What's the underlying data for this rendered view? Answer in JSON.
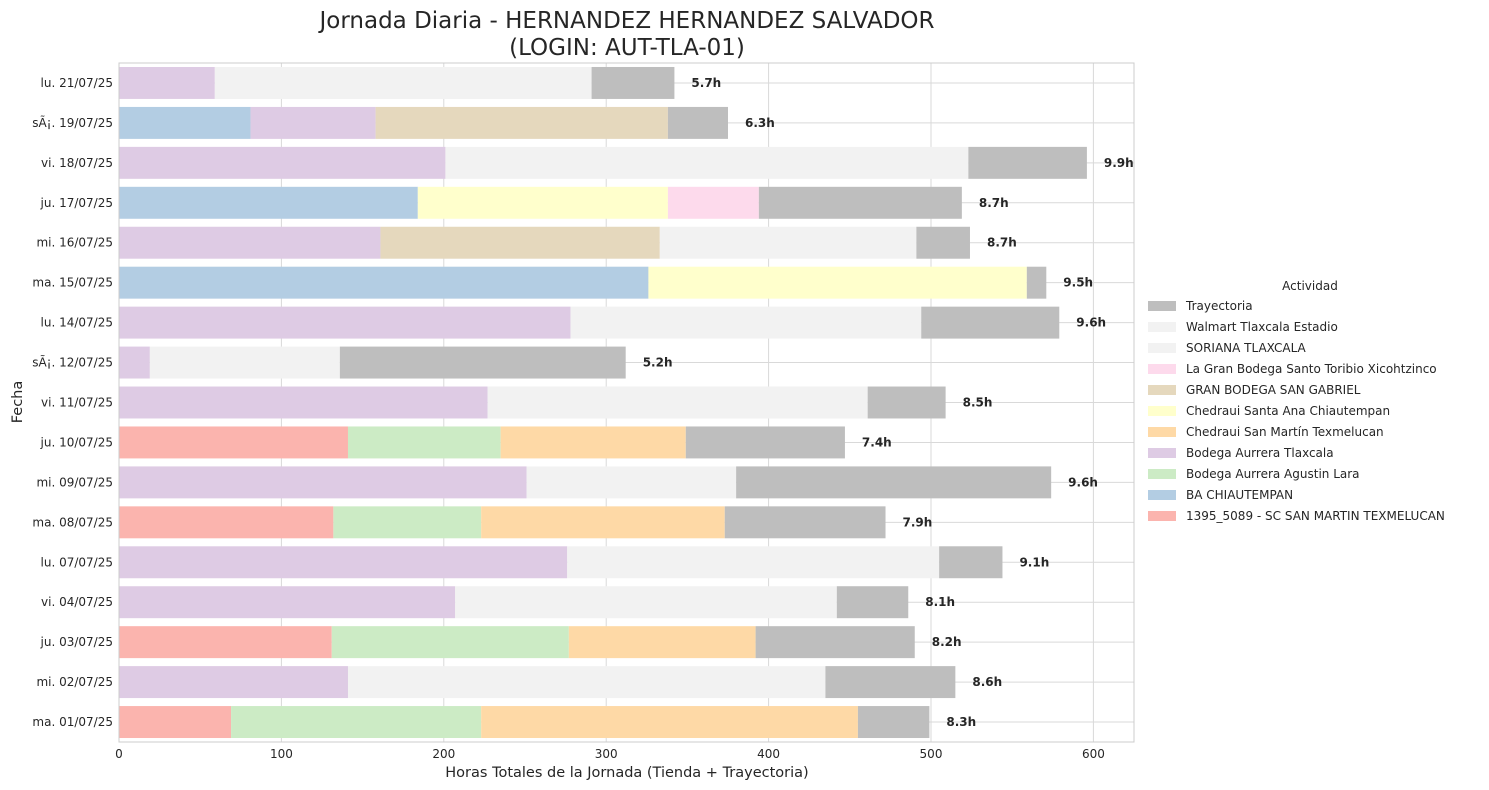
{
  "chart_data": {
    "type": "bar",
    "orientation": "horizontal",
    "stacked": true,
    "title_line1": "Jornada Diaria - HERNANDEZ HERNANDEZ SALVADOR",
    "title_line2": "(LOGIN: AUT-TLA-01)",
    "xlabel": "Horas Totales de la Jornada (Tienda + Trayectoria)",
    "ylabel": "Fecha",
    "xlim": [
      0,
      625
    ],
    "xticks": [
      0,
      100,
      200,
      300,
      400,
      500,
      600
    ],
    "grid": true,
    "legend_title": "Actividad",
    "legend_position": "right",
    "categories": [
      "lu. 21/07/25",
      "sÃ¡. 19/07/25",
      "vi. 18/07/25",
      "ju. 17/07/25",
      "mi. 16/07/25",
      "ma. 15/07/25",
      "lu. 14/07/25",
      "sÃ¡. 12/07/25",
      "vi. 11/07/25",
      "ju. 10/07/25",
      "mi. 09/07/25",
      "ma. 08/07/25",
      "lu. 07/07/25",
      "vi. 04/07/25",
      "ju. 03/07/25",
      "mi. 02/07/25",
      "ma. 01/07/25"
    ],
    "totals_labels": [
      "5.7h",
      "6.3h",
      "9.9h",
      "8.7h",
      "8.7h",
      "9.5h",
      "9.6h",
      "5.2h",
      "8.5h",
      "7.4h",
      "9.6h",
      "7.9h",
      "9.1h",
      "8.1h",
      "8.2h",
      "8.6h",
      "8.3h"
    ],
    "series": [
      {
        "name": "1395_5089 - SC SAN MARTIN TEXMELUCAN",
        "color": "#fbb4ae",
        "values": [
          0,
          0,
          0,
          0,
          0,
          0,
          0,
          0,
          0,
          141,
          0,
          132,
          0,
          0,
          131,
          0,
          69
        ]
      },
      {
        "name": "BA CHIAUTEMPAN",
        "color": "#b3cde3",
        "values": [
          0,
          81,
          0,
          184,
          0,
          326,
          0,
          0,
          0,
          0,
          0,
          0,
          0,
          0,
          0,
          0,
          0
        ]
      },
      {
        "name": "Bodega Aurrera Agustin Lara",
        "color": "#ccebc5",
        "values": [
          0,
          0,
          0,
          0,
          0,
          0,
          0,
          0,
          0,
          94,
          0,
          91,
          0,
          0,
          146,
          0,
          154
        ]
      },
      {
        "name": "Bodega Aurrera Tlaxcala",
        "color": "#decbe4",
        "values": [
          59,
          77,
          201,
          0,
          161,
          0,
          278,
          19,
          227,
          0,
          251,
          0,
          276,
          207,
          0,
          141,
          0
        ]
      },
      {
        "name": "Chedraui San Martín Texmelucan",
        "color": "#fed9a6",
        "values": [
          0,
          0,
          0,
          0,
          0,
          0,
          0,
          0,
          0,
          114,
          0,
          150,
          0,
          0,
          115,
          0,
          232
        ]
      },
      {
        "name": "Chedraui Santa Ana Chiautempan",
        "color": "#ffffcc",
        "values": [
          0,
          0,
          0,
          154,
          0,
          233,
          0,
          0,
          0,
          0,
          0,
          0,
          0,
          0,
          0,
          0,
          0
        ]
      },
      {
        "name": "GRAN BODEGA SAN GABRIEL",
        "color": "#e5d8bd",
        "values": [
          0,
          180,
          0,
          0,
          172,
          0,
          0,
          0,
          0,
          0,
          0,
          0,
          0,
          0,
          0,
          0,
          0
        ]
      },
      {
        "name": "La Gran Bodega Santo Toribio Xicohtzinco",
        "color": "#fddaec",
        "values": [
          0,
          0,
          0,
          56,
          0,
          0,
          0,
          0,
          0,
          0,
          0,
          0,
          0,
          0,
          0,
          0,
          0
        ]
      },
      {
        "name": "SORIANA TLAXCALA",
        "color": "#f2f2f2",
        "values": [
          232,
          0,
          322,
          0,
          158,
          0,
          216,
          117,
          234,
          0,
          129,
          0,
          229,
          235,
          0,
          294,
          0
        ]
      },
      {
        "name": "Walmart Tlaxcala Estadio",
        "color": "#f2f2f2",
        "values": [
          0,
          0,
          0,
          0,
          0,
          0,
          0,
          0,
          0,
          0,
          0,
          0,
          0,
          0,
          0,
          0,
          0
        ]
      },
      {
        "name": "Trayectoria",
        "color": "#bebebe",
        "values": [
          51,
          37,
          73,
          125,
          33,
          12,
          85,
          176,
          48,
          98,
          194,
          99,
          39,
          44,
          98,
          80,
          44
        ]
      }
    ]
  }
}
